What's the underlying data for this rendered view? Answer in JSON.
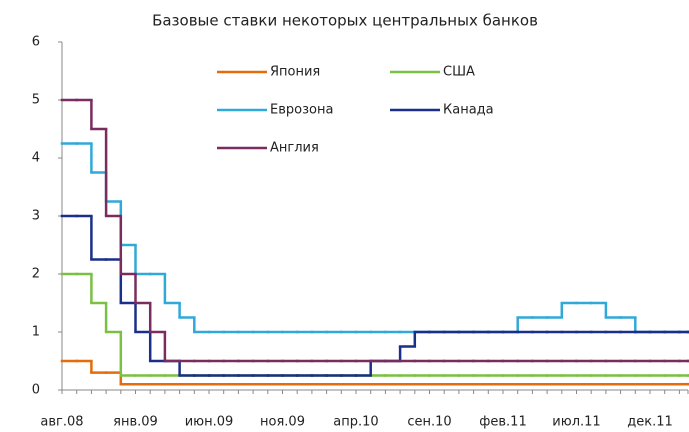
{
  "chart_data": {
    "type": "step-line",
    "title": "Базовые ставки некоторых центральных банков",
    "categories": [
      "авг.08",
      null,
      null,
      null,
      null,
      "янв.09",
      null,
      null,
      null,
      null,
      "июн.09",
      null,
      null,
      null,
      null,
      "ноя.09",
      null,
      null,
      null,
      null,
      "апр.10",
      null,
      null,
      null,
      null,
      "сен.10",
      null,
      null,
      null,
      null,
      "фев.11",
      null,
      null,
      null,
      null,
      "июл.11",
      null,
      null,
      null,
      null,
      "дек.11",
      null,
      null,
      null
    ],
    "ylim": [
      0,
      6
    ],
    "yticks": [
      0,
      1,
      2,
      3,
      4,
      5,
      6
    ],
    "grid": false,
    "series": [
      {
        "name": "Япония",
        "color": "#e46c0a",
        "values": [
          0.5,
          0.5,
          0.3,
          0.3,
          0.1,
          0.1,
          0.1,
          0.1,
          0.1,
          0.1,
          0.1,
          0.1,
          0.1,
          0.1,
          0.1,
          0.1,
          0.1,
          0.1,
          0.1,
          0.1,
          0.1,
          0.1,
          0.1,
          0.1,
          0.1,
          0.1,
          0.1,
          0.1,
          0.1,
          0.1,
          0.1,
          0.1,
          0.1,
          0.1,
          0.1,
          0.1,
          0.1,
          0.1,
          0.1,
          0.1,
          0.1,
          0.1,
          0.1,
          0.1
        ]
      },
      {
        "name": "США",
        "color": "#7ac143",
        "values": [
          2,
          2,
          1.5,
          1,
          0.25,
          0.25,
          0.25,
          0.25,
          0.25,
          0.25,
          0.25,
          0.25,
          0.25,
          0.25,
          0.25,
          0.25,
          0.25,
          0.25,
          0.25,
          0.25,
          0.25,
          0.25,
          0.25,
          0.25,
          0.25,
          0.25,
          0.25,
          0.25,
          0.25,
          0.25,
          0.25,
          0.25,
          0.25,
          0.25,
          0.25,
          0.25,
          0.25,
          0.25,
          0.25,
          0.25,
          0.25,
          0.25,
          0.25,
          0.25
        ]
      },
      {
        "name": "Еврозона",
        "color": "#31a9d8",
        "values": [
          4.25,
          4.25,
          3.75,
          3.25,
          2.5,
          2,
          2,
          1.5,
          1.25,
          1,
          1,
          1,
          1,
          1,
          1,
          1,
          1,
          1,
          1,
          1,
          1,
          1,
          1,
          1,
          1,
          1,
          1,
          1,
          1,
          1,
          1,
          1.25,
          1.25,
          1.25,
          1.5,
          1.5,
          1.5,
          1.25,
          1.25,
          1,
          1,
          1,
          1,
          1
        ]
      },
      {
        "name": "Канада",
        "color": "#1a2f8a",
        "values": [
          3,
          3,
          2.25,
          2.25,
          1.5,
          1,
          0.5,
          0.5,
          0.25,
          0.25,
          0.25,
          0.25,
          0.25,
          0.25,
          0.25,
          0.25,
          0.25,
          0.25,
          0.25,
          0.25,
          0.25,
          0.5,
          0.5,
          0.75,
          1,
          1,
          1,
          1,
          1,
          1,
          1,
          1,
          1,
          1,
          1,
          1,
          1,
          1,
          1,
          1,
          1,
          1,
          1,
          1
        ]
      },
      {
        "name": "Англия",
        "color": "#7b2c5e",
        "values": [
          5,
          5,
          4.5,
          3,
          2,
          1.5,
          1,
          0.5,
          0.5,
          0.5,
          0.5,
          0.5,
          0.5,
          0.5,
          0.5,
          0.5,
          0.5,
          0.5,
          0.5,
          0.5,
          0.5,
          0.5,
          0.5,
          0.5,
          0.5,
          0.5,
          0.5,
          0.5,
          0.5,
          0.5,
          0.5,
          0.5,
          0.5,
          0.5,
          0.5,
          0.5,
          0.5,
          0.5,
          0.5,
          0.5,
          0.5,
          0.5,
          0.5,
          0.5
        ]
      }
    ]
  }
}
